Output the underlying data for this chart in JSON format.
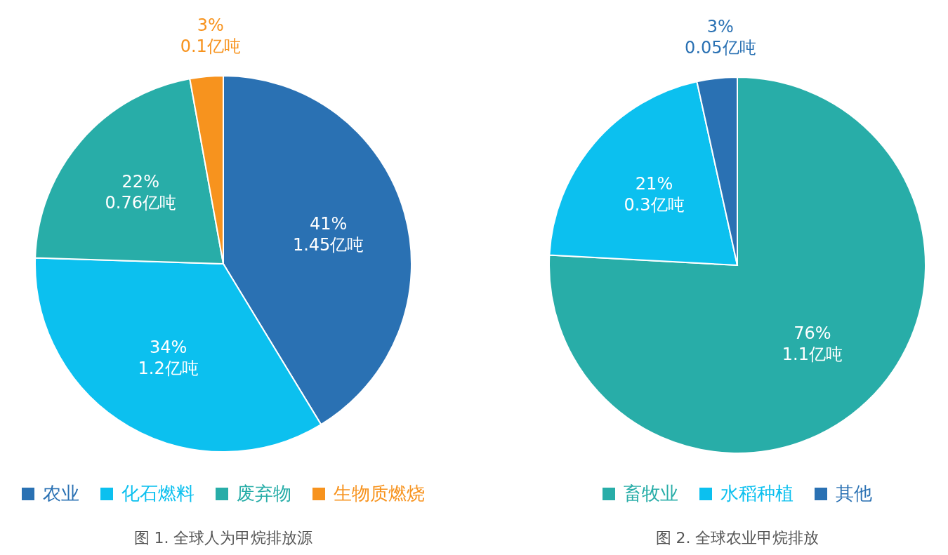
{
  "chart_data": [
    {
      "type": "pie",
      "title": "图 1. 全球人为甲烷排放源",
      "categories": [
        "农业",
        "化石燃料",
        "废弃物",
        "生物质燃烧"
      ],
      "values": [
        1.45,
        1.2,
        0.76,
        0.1
      ],
      "colors": [
        "#2a71b3",
        "#0cc0ef",
        "#28ada8",
        "#f7931e"
      ],
      "value_labels": [
        "41%\n1.45亿吨",
        "34%\n1.2亿吨",
        "22%\n0.76亿吨",
        "3%\n0.1亿吨"
      ],
      "legend": "bottom"
    },
    {
      "type": "pie",
      "title": "图 2. 全球农业甲烷排放",
      "categories": [
        "畜牧业",
        "水稻种植",
        "其他"
      ],
      "values": [
        1.1,
        0.3,
        0.05
      ],
      "colors": [
        "#28ada8",
        "#0cc0ef",
        "#2a71b3"
      ],
      "value_labels": [
        "76%\n1.1亿吨",
        "21%\n0.3亿吨",
        "3%\n0.05亿吨"
      ],
      "legend": "bottom"
    }
  ]
}
